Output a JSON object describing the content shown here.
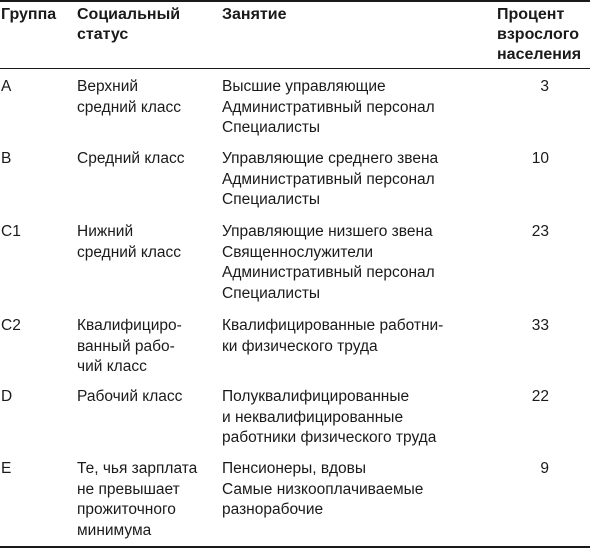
{
  "table": {
    "headers": {
      "group": [
        "Группа"
      ],
      "status": [
        "Социальный",
        "статус"
      ],
      "occupation": [
        "Занятие"
      ],
      "percent": [
        "Процент",
        "взрослого",
        "населения"
      ]
    },
    "rows": [
      {
        "group": "A",
        "status": [
          "Верхний",
          "средний класс"
        ],
        "occupation": [
          "Высшие управляющие",
          "Административный персонал",
          "Специалисты"
        ],
        "percent": "3"
      },
      {
        "group": "B",
        "status": [
          "Средний класс"
        ],
        "occupation": [
          "Управляющие среднего звена",
          "Административный персонал",
          "Специалисты"
        ],
        "percent": "10"
      },
      {
        "group": "C1",
        "status": [
          "Нижний",
          "средний класс"
        ],
        "occupation": [
          "Управляющие низшего звена",
          "Священнослужители",
          "Административный персонал",
          "Специалисты"
        ],
        "percent": "23"
      },
      {
        "group": "C2",
        "status": [
          "Квалифициро-",
          "ванный рабо-",
          "чий класс"
        ],
        "occupation": [
          "Квалифицированные работни-",
          "ки физического труда"
        ],
        "percent": "33"
      },
      {
        "group": "D",
        "status": [
          "Рабочий класс"
        ],
        "occupation": [
          "Полуквалифицированные",
          "и неквалифицированные",
          "работники физического труда"
        ],
        "percent": "22"
      },
      {
        "group": "E",
        "status": [
          "Те, чья зарплата",
          "не превышает",
          "прожиточного",
          "минимума"
        ],
        "occupation": [
          "Пенсионеры, вдовы",
          "Самые низкооплачиваемые",
          "разнорабочие"
        ],
        "percent": "9"
      }
    ]
  }
}
